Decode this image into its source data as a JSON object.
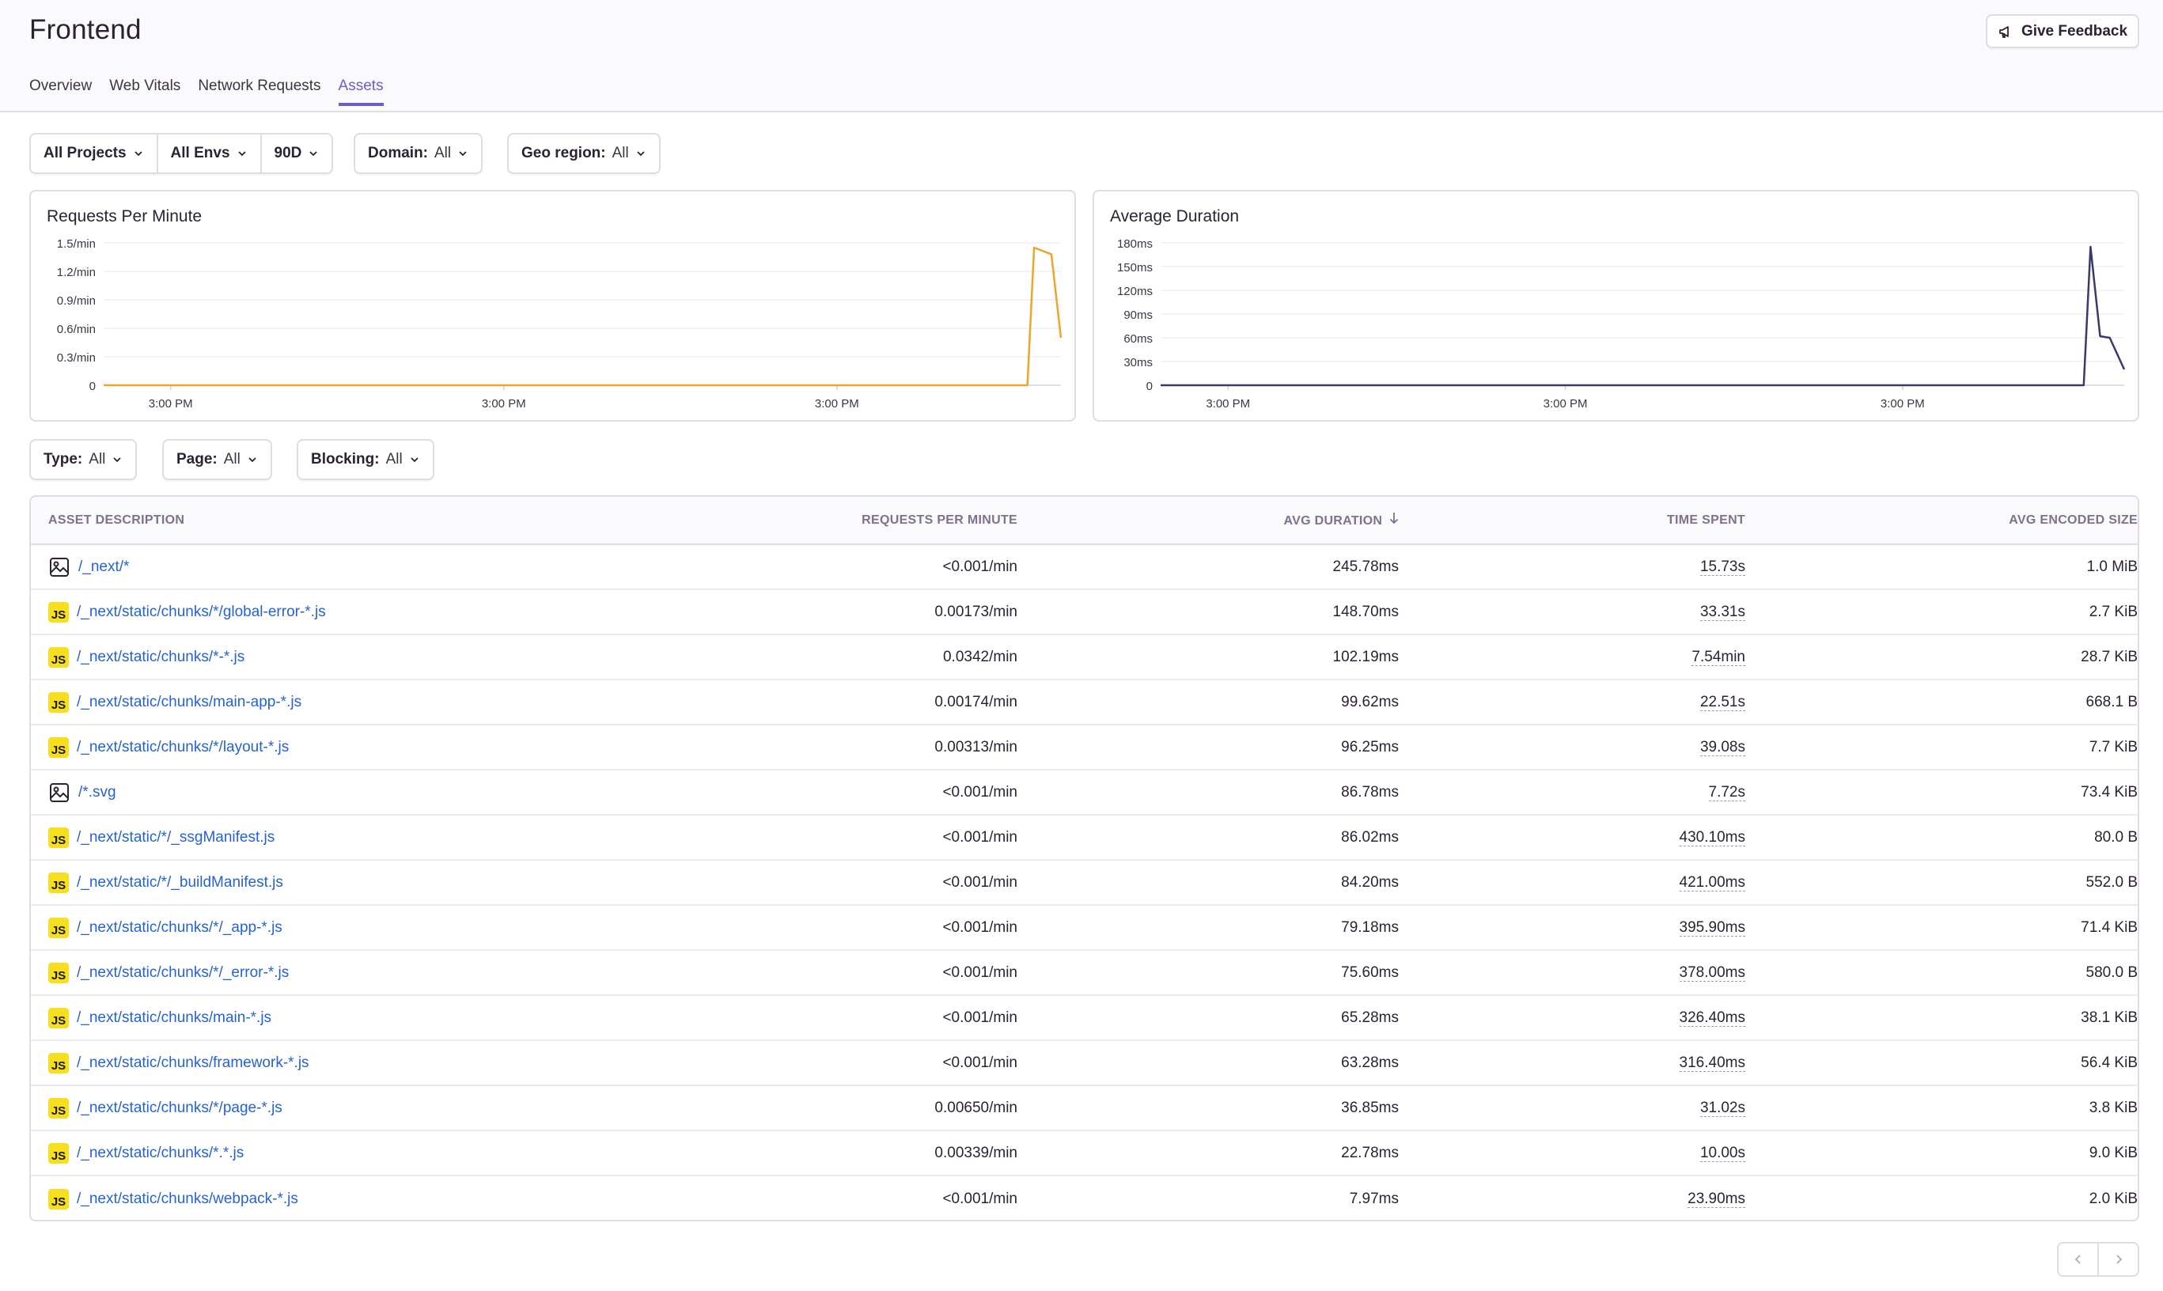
{
  "header": {
    "title": "Frontend",
    "feedback_label": "Give Feedback",
    "tabs": [
      "Overview",
      "Web Vitals",
      "Network Requests",
      "Assets"
    ],
    "active_tab": "Assets"
  },
  "page_filters": {
    "project": "All Projects",
    "env": "All Envs",
    "period": "90D",
    "domain_label": "Domain:",
    "domain_value": "All",
    "geo_label": "Geo region:",
    "geo_value": "All"
  },
  "asset_filters": {
    "type_label": "Type:",
    "type_value": "All",
    "page_label": "Page:",
    "page_value": "All",
    "blocking_label": "Blocking:",
    "blocking_value": "All"
  },
  "chart_data": [
    {
      "type": "line",
      "title": "Requests Per Minute",
      "color": "#e9a72b",
      "yticks": [
        "1.5/min",
        "1.2/min",
        "0.9/min",
        "0.6/min",
        "0.3/min",
        "0"
      ],
      "ylim": [
        0,
        1.5
      ],
      "xticks": [
        "3:00 PM",
        "3:00 PM",
        "3:00 PM"
      ],
      "series": [
        {
          "values": [
            [
              0,
              0
            ],
            [
              0.965,
              0
            ],
            [
              0.972,
              1.45
            ],
            [
              0.99,
              1.38
            ],
            [
              1.0,
              0.5
            ]
          ]
        }
      ]
    },
    {
      "type": "line",
      "title": "Average Duration",
      "color": "#3a3a6a",
      "yticks": [
        "180ms",
        "150ms",
        "120ms",
        "90ms",
        "60ms",
        "30ms",
        "0"
      ],
      "ylim": [
        0,
        180
      ],
      "xticks": [
        "3:00 PM",
        "3:00 PM",
        "3:00 PM"
      ],
      "series": [
        {
          "values": [
            [
              0,
              0
            ],
            [
              0.958,
              0
            ],
            [
              0.965,
              175
            ],
            [
              0.975,
              62
            ],
            [
              0.985,
              60
            ],
            [
              1.0,
              20
            ]
          ]
        }
      ]
    }
  ],
  "table": {
    "headers": {
      "desc": "Asset Description",
      "rpm": "Requests Per Minute",
      "dur": "Avg Duration",
      "time": "Time Spent",
      "size": "Avg Encoded Size"
    },
    "rows": [
      {
        "icon": "image",
        "desc": "/_next/*",
        "rpm": "<0.001/min",
        "dur": "245.78ms",
        "time": "15.73s",
        "size": "1.0 MiB"
      },
      {
        "icon": "js",
        "desc": "/_next/static/chunks/*/global-error-*.js",
        "rpm": "0.00173/min",
        "dur": "148.70ms",
        "time": "33.31s",
        "size": "2.7 KiB"
      },
      {
        "icon": "js",
        "desc": "/_next/static/chunks/*-*.js",
        "rpm": "0.0342/min",
        "dur": "102.19ms",
        "time": "7.54min",
        "size": "28.7 KiB"
      },
      {
        "icon": "js",
        "desc": "/_next/static/chunks/main-app-*.js",
        "rpm": "0.00174/min",
        "dur": "99.62ms",
        "time": "22.51s",
        "size": "668.1 B"
      },
      {
        "icon": "js",
        "desc": "/_next/static/chunks/*/layout-*.js",
        "rpm": "0.00313/min",
        "dur": "96.25ms",
        "time": "39.08s",
        "size": "7.7 KiB"
      },
      {
        "icon": "image",
        "desc": "/*.svg",
        "rpm": "<0.001/min",
        "dur": "86.78ms",
        "time": "7.72s",
        "size": "73.4 KiB"
      },
      {
        "icon": "js",
        "desc": "/_next/static/*/_ssgManifest.js",
        "rpm": "<0.001/min",
        "dur": "86.02ms",
        "time": "430.10ms",
        "size": "80.0 B"
      },
      {
        "icon": "js",
        "desc": "/_next/static/*/_buildManifest.js",
        "rpm": "<0.001/min",
        "dur": "84.20ms",
        "time": "421.00ms",
        "size": "552.0 B"
      },
      {
        "icon": "js",
        "desc": "/_next/static/chunks/*/_app-*.js",
        "rpm": "<0.001/min",
        "dur": "79.18ms",
        "time": "395.90ms",
        "size": "71.4 KiB"
      },
      {
        "icon": "js",
        "desc": "/_next/static/chunks/*/_error-*.js",
        "rpm": "<0.001/min",
        "dur": "75.60ms",
        "time": "378.00ms",
        "size": "580.0 B"
      },
      {
        "icon": "js",
        "desc": "/_next/static/chunks/main-*.js",
        "rpm": "<0.001/min",
        "dur": "65.28ms",
        "time": "326.40ms",
        "size": "38.1 KiB"
      },
      {
        "icon": "js",
        "desc": "/_next/static/chunks/framework-*.js",
        "rpm": "<0.001/min",
        "dur": "63.28ms",
        "time": "316.40ms",
        "size": "56.4 KiB"
      },
      {
        "icon": "js",
        "desc": "/_next/static/chunks/*/page-*.js",
        "rpm": "0.00650/min",
        "dur": "36.85ms",
        "time": "31.02s",
        "size": "3.8 KiB"
      },
      {
        "icon": "js",
        "desc": "/_next/static/chunks/*.*.js",
        "rpm": "0.00339/min",
        "dur": "22.78ms",
        "time": "10.00s",
        "size": "9.0 KiB"
      },
      {
        "icon": "js",
        "desc": "/_next/static/chunks/webpack-*.js",
        "rpm": "<0.001/min",
        "dur": "7.97ms",
        "time": "23.90ms",
        "size": "2.0 KiB"
      }
    ]
  },
  "js_icon_label": "JS"
}
